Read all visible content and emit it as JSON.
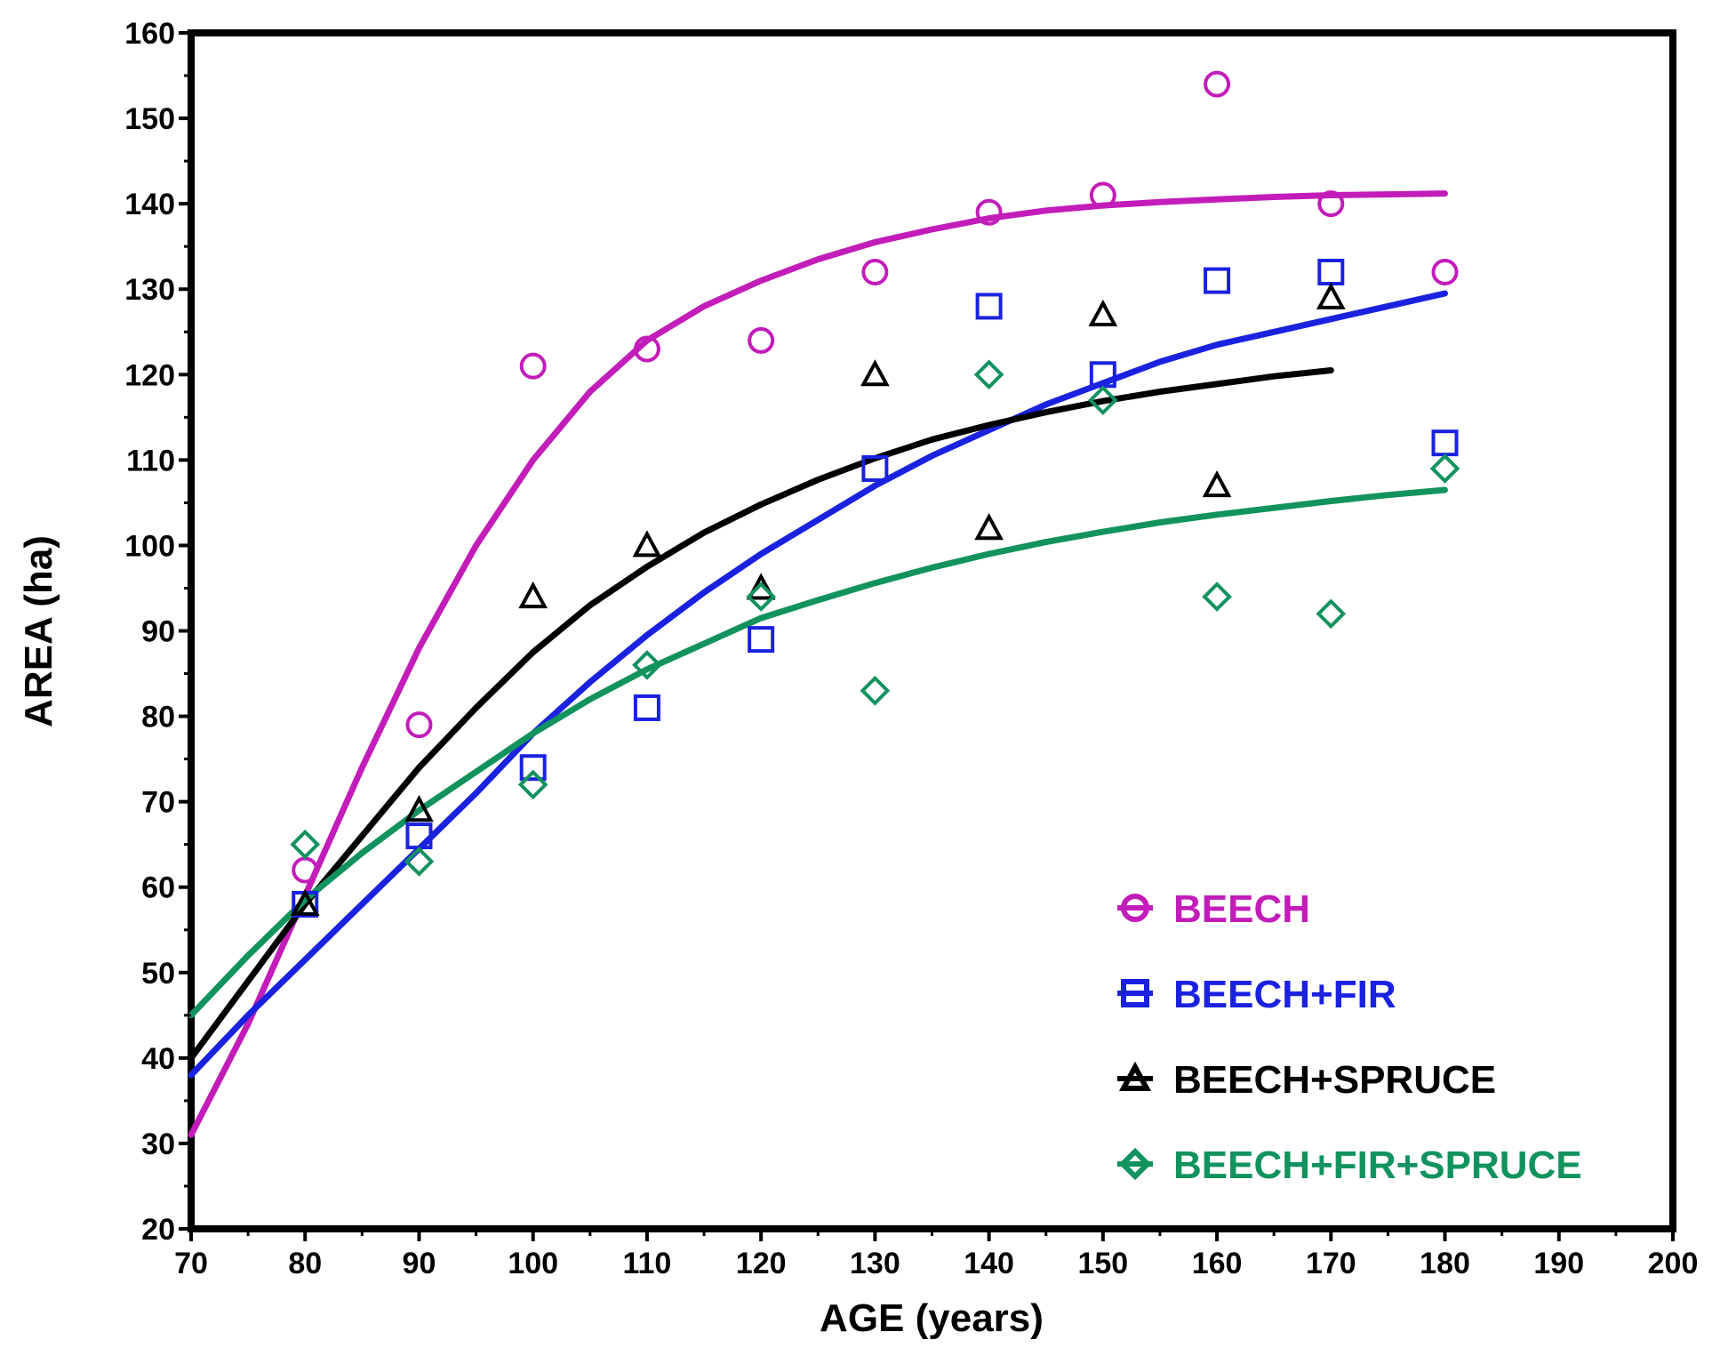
{
  "chart_data": {
    "type": "scatter",
    "title": "",
    "xlabel": "AGE (years)",
    "ylabel": "AREA (ha)",
    "xlim": [
      70,
      200
    ],
    "ylim": [
      20,
      160
    ],
    "xticks": [
      70,
      80,
      90,
      100,
      110,
      120,
      130,
      140,
      150,
      160,
      170,
      180,
      190,
      200
    ],
    "yticks": [
      20,
      30,
      40,
      50,
      60,
      70,
      80,
      90,
      100,
      110,
      120,
      130,
      140,
      150,
      160
    ],
    "grid": false,
    "legend_position": "bottom-right",
    "series": [
      {
        "name": "BEECH",
        "marker": "circle",
        "color": "#C21DB9",
        "x": [
          80,
          90,
          100,
          110,
          120,
          130,
          140,
          150,
          160,
          170,
          180
        ],
        "y": [
          62,
          79,
          121,
          123,
          124,
          132,
          139,
          141,
          154,
          140,
          132
        ],
        "fit_x": [
          70,
          75,
          80,
          85,
          90,
          95,
          100,
          105,
          110,
          115,
          120,
          125,
          130,
          135,
          140,
          145,
          150,
          155,
          160,
          165,
          170,
          175,
          180
        ],
        "fit_y": [
          31,
          44,
          59,
          74,
          88,
          100,
          110,
          118,
          124,
          128,
          131,
          133.5,
          135.5,
          137,
          138.3,
          139.2,
          139.8,
          140.2,
          140.5,
          140.8,
          141,
          141.1,
          141.2
        ]
      },
      {
        "name": "BEECH+FIR",
        "marker": "square",
        "color": "#1A22E0",
        "x": [
          80,
          90,
          100,
          110,
          120,
          130,
          140,
          150,
          160,
          170,
          180
        ],
        "y": [
          58,
          66,
          74,
          81,
          89,
          109,
          128,
          120,
          131,
          132,
          112
        ],
        "fit_x": [
          70,
          75,
          80,
          85,
          90,
          95,
          100,
          105,
          110,
          115,
          120,
          125,
          130,
          135,
          140,
          145,
          150,
          155,
          160,
          165,
          170,
          175,
          180
        ],
        "fit_y": [
          38,
          45,
          51.5,
          58,
          64.5,
          71,
          78,
          84,
          89.5,
          94.5,
          99,
          103,
          107,
          110.5,
          113.5,
          116.5,
          119,
          121.5,
          123.5,
          125,
          126.5,
          128,
          129.5
        ]
      },
      {
        "name": "BEECH+SPRUCE",
        "marker": "triangle",
        "color": "#000000",
        "x": [
          80,
          90,
          100,
          110,
          120,
          130,
          140,
          150,
          160,
          170
        ],
        "y": [
          58,
          69,
          94,
          100,
          95,
          120,
          102,
          127,
          107,
          129
        ],
        "fit_x": [
          70,
          75,
          80,
          85,
          90,
          95,
          100,
          105,
          110,
          115,
          120,
          125,
          130,
          135,
          140,
          145,
          150,
          155,
          160,
          165,
          170
        ],
        "fit_y": [
          40,
          49,
          58,
          66,
          74,
          81,
          87.5,
          93,
          97.5,
          101.5,
          104.8,
          107.7,
          110.2,
          112.4,
          114.1,
          115.6,
          116.9,
          118,
          118.9,
          119.8,
          120.5
        ]
      },
      {
        "name": "BEECH+FIR+SPRUCE",
        "marker": "diamond",
        "color": "#12935E",
        "x": [
          80,
          90,
          100,
          110,
          120,
          130,
          140,
          150,
          160,
          170,
          180
        ],
        "y": [
          65,
          63,
          72,
          86,
          94,
          83,
          120,
          117,
          94,
          92,
          109
        ],
        "fit_x": [
          70,
          75,
          80,
          85,
          90,
          95,
          100,
          105,
          110,
          115,
          120,
          125,
          130,
          135,
          140,
          145,
          150,
          155,
          160,
          165,
          170,
          175,
          180
        ],
        "fit_y": [
          45,
          52,
          58.5,
          64,
          69,
          73.5,
          78,
          82,
          85.5,
          88.5,
          91.5,
          93.6,
          95.6,
          97.4,
          99,
          100.4,
          101.6,
          102.7,
          103.6,
          104.4,
          105.2,
          105.9,
          106.5
        ]
      }
    ]
  }
}
